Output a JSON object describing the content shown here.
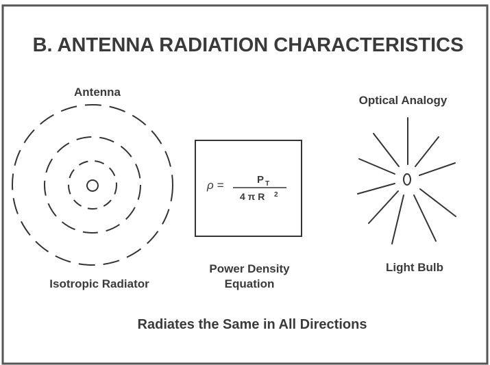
{
  "title": "B. ANTENNA RADIATION CHARACTERISTICS",
  "antenna": {
    "label": "Antenna",
    "caption": "Isotropic Radiator"
  },
  "equation": {
    "lhs": "ρ =",
    "numerator": "P",
    "numerator_subscript": "T",
    "denominator": "4 π R",
    "denominator_superscript": "2",
    "caption": [
      "Power Density",
      "Equation"
    ]
  },
  "optical": {
    "label": "Optical Analogy",
    "caption": "Light Bulb"
  },
  "footer": "Radiates the Same in All Directions"
}
